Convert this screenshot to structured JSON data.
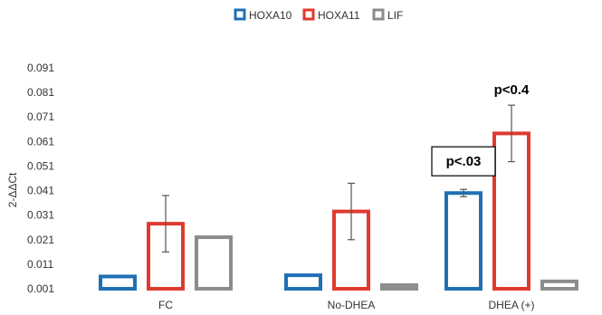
{
  "chart_data": {
    "type": "bar",
    "title": "",
    "xlabel": "",
    "ylabel": "2-ΔΔCt",
    "ylim": [
      0.001,
      0.091
    ],
    "yticks": [
      "0.001",
      "0.011",
      "0.021",
      "0.031",
      "0.041",
      "0.051",
      "0.061",
      "0.071",
      "0.081",
      "0.091"
    ],
    "categories": [
      "FC",
      "No-DHEA",
      "DHEA (+)"
    ],
    "legend_position": "top-center",
    "grid": false,
    "series": [
      {
        "name": "HOXA10",
        "color": "#1f6fb5",
        "values": [
          0.006,
          0.0065,
          0.04
        ],
        "errors": [
          0.0,
          0.0,
          0.0015
        ]
      },
      {
        "name": "HOXA11",
        "color": "#e03a2f",
        "values": [
          0.0275,
          0.0325,
          0.0643
        ],
        "errors": [
          0.0115,
          0.0115,
          0.0115
        ]
      },
      {
        "name": "LIF",
        "color": "#8c8c8c",
        "values": [
          0.022,
          0.0025,
          0.004
        ],
        "errors": [
          0.0,
          0.0,
          0.0
        ]
      }
    ],
    "annotations": [
      {
        "text": "p<.03",
        "category": 2,
        "series": 0,
        "boxed": true
      },
      {
        "text": "p<0.4",
        "category": 2,
        "series": 1,
        "boxed": false
      }
    ]
  }
}
